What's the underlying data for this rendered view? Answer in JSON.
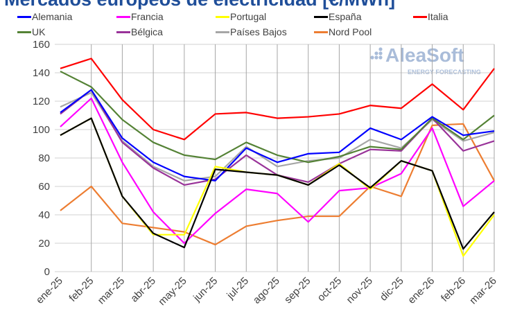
{
  "chart_data": {
    "type": "line",
    "title": "Mercados europeos de electricidad [€/MWh]",
    "xlabel": "",
    "ylabel": "",
    "ylim": [
      0,
      160
    ],
    "yticks": [
      0,
      20,
      40,
      60,
      80,
      100,
      120,
      140,
      160
    ],
    "grid": true,
    "legend": "top",
    "categories": [
      "ene-25",
      "feb-25",
      "mar-25",
      "abr-25",
      "may-25",
      "jun-25",
      "jul-25",
      "ago-25",
      "sep-25",
      "oct-25",
      "nov-25",
      "dic-25",
      "ene-26",
      "feb-26",
      "mar-26"
    ],
    "series": [
      {
        "name": "Alemania",
        "color": "#0000ff",
        "values": [
          112,
          128,
          94,
          77,
          67,
          64,
          87,
          77,
          83,
          84,
          101,
          93,
          109,
          96,
          99
        ]
      },
      {
        "name": "Francia",
        "color": "#ff00ff",
        "values": [
          102,
          122,
          77,
          42,
          20,
          41,
          58,
          55,
          35,
          57,
          59,
          69,
          101,
          46,
          64
        ]
      },
      {
        "name": "Portugal",
        "color": "#ffff00",
        "values": [
          96,
          108,
          53,
          26,
          26,
          74,
          70,
          68,
          61,
          76,
          58,
          78,
          71,
          11,
          40
        ]
      },
      {
        "name": "España",
        "color": "#000000",
        "values": [
          96,
          108,
          53,
          27,
          17,
          72,
          70,
          68,
          61,
          75,
          59,
          78,
          71,
          16,
          42
        ]
      },
      {
        "name": "Italia",
        "color": "#ff0000",
        "values": [
          143,
          150,
          121,
          100,
          93,
          111,
          112,
          108,
          109,
          111,
          117,
          115,
          132,
          114,
          143
        ]
      },
      {
        "name": "UK",
        "color": "#548235",
        "values": [
          141,
          130,
          107,
          91,
          82,
          79,
          91,
          82,
          77,
          81,
          88,
          86,
          108,
          93,
          110
        ]
      },
      {
        "name": "Bélgica",
        "color": "#993399",
        "values": [
          111,
          128,
          91,
          73,
          61,
          65,
          82,
          68,
          63,
          76,
          86,
          85,
          108,
          85,
          92
        ]
      },
      {
        "name": "Países Bajos",
        "color": "#a6a6a6",
        "values": [
          116,
          126,
          92,
          74,
          64,
          67,
          88,
          74,
          78,
          80,
          93,
          87,
          107,
          92,
          98
        ]
      },
      {
        "name": "Nord Pool",
        "color": "#ed7d31",
        "values": [
          43,
          60,
          34,
          31,
          28,
          19,
          32,
          36,
          39,
          39,
          60,
          53,
          103,
          104,
          64
        ]
      }
    ]
  },
  "watermark": {
    "brand": "AleaSoft",
    "tagline": "ENERGY FORECASTING"
  }
}
